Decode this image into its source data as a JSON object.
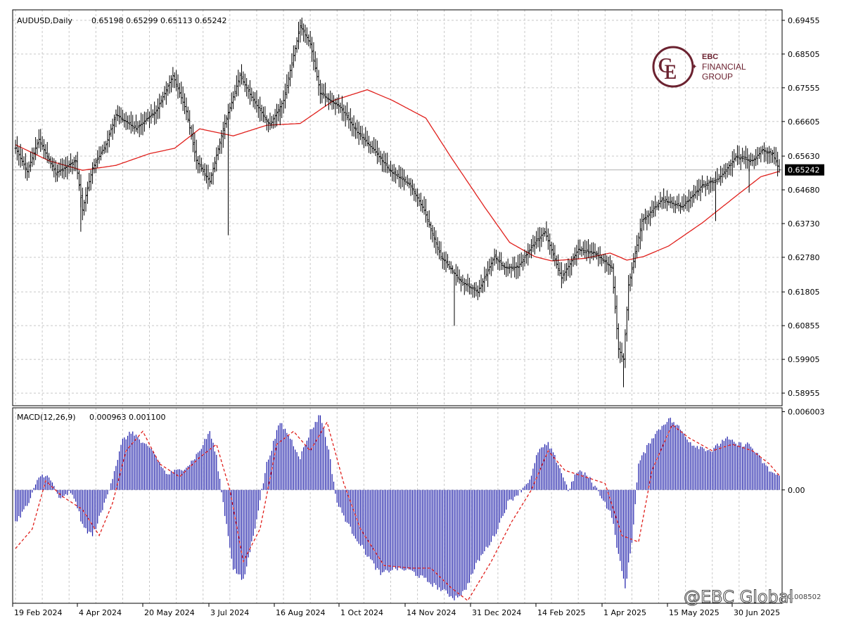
{
  "header": {
    "instrument": "AUDUSD,Daily",
    "ohlc": "0.65198 0.65299 0.65113 0.65242"
  },
  "macd_header": {
    "label": "MACD(12,26,9)",
    "values": "0.000963 0.001100"
  },
  "logo": {
    "line1": "EBC",
    "line2": "FINANCIAL",
    "line3": "GROUP",
    "color": "#6b2230"
  },
  "watermark": {
    "text": "@EBC Global",
    "corner_label": "-0.008502"
  },
  "current_price_label": "0.65242",
  "colors": {
    "price_bars": "#000000",
    "moving_average": "#e0201c",
    "macd_histogram": "#1a1aa8",
    "macd_signal": "#e0201c",
    "grid": "#c8c8c8",
    "current_price_box": "#000000"
  },
  "chart_data": [
    {
      "type": "ohlc",
      "instrument": "AUDUSD",
      "timeframe": "Daily",
      "ylim": [
        0.586,
        0.6975
      ],
      "y_ticks": [
        "0.69455",
        "0.68505",
        "0.67555",
        "0.66605",
        "0.65630",
        "0.64680",
        "0.63730",
        "0.62780",
        "0.61805",
        "0.60855",
        "0.59905",
        "0.58955"
      ],
      "x_ticks": [
        "19 Feb 2024",
        "4 Apr 2024",
        "20 May 2024",
        "3 Jul 2024",
        "16 Aug 2024",
        "1 Oct 2024",
        "14 Nov 2024",
        "31 Dec 2024",
        "14 Feb 2025",
        "1 Apr 2025",
        "15 May 2025",
        "30 Jun 2025"
      ],
      "grid": true,
      "last_close": 0.65242,
      "close_anchors": [
        [
          0,
          0.6585
        ],
        [
          7,
          0.652
        ],
        [
          14,
          0.661
        ],
        [
          24,
          0.6515
        ],
        [
          36,
          0.655
        ],
        [
          40,
          0.6412
        ],
        [
          46,
          0.653
        ],
        [
          54,
          0.6595
        ],
        [
          60,
          0.668
        ],
        [
          72,
          0.664
        ],
        [
          84,
          0.669
        ],
        [
          94,
          0.679
        ],
        [
          102,
          0.669
        ],
        [
          108,
          0.655
        ],
        [
          116,
          0.649
        ],
        [
          124,
          0.664
        ],
        [
          134,
          0.679
        ],
        [
          142,
          0.672
        ],
        [
          152,
          0.665
        ],
        [
          160,
          0.672
        ],
        [
          170,
          0.693
        ],
        [
          176,
          0.688
        ],
        [
          182,
          0.674
        ],
        [
          194,
          0.67
        ],
        [
          204,
          0.663
        ],
        [
          214,
          0.658
        ],
        [
          224,
          0.652
        ],
        [
          236,
          0.648
        ],
        [
          244,
          0.641
        ],
        [
          254,
          0.628
        ],
        [
          266,
          0.621
        ],
        [
          276,
          0.618
        ],
        [
          286,
          0.628
        ],
        [
          292,
          0.625
        ],
        [
          300,
          0.625
        ],
        [
          310,
          0.632
        ],
        [
          316,
          0.635
        ],
        [
          326,
          0.622
        ],
        [
          336,
          0.63
        ],
        [
          346,
          0.629
        ],
        [
          356,
          0.625
        ],
        [
          360,
          0.602
        ],
        [
          363,
          0.599
        ],
        [
          366,
          0.62
        ],
        [
          374,
          0.638
        ],
        [
          386,
          0.644
        ],
        [
          398,
          0.642
        ],
        [
          410,
          0.648
        ],
        [
          420,
          0.65
        ],
        [
          430,
          0.656
        ],
        [
          440,
          0.655
        ],
        [
          446,
          0.658
        ],
        [
          452,
          0.657
        ],
        [
          456,
          0.6524
        ]
      ],
      "moving_average_anchors": [
        [
          0,
          0.6595
        ],
        [
          20,
          0.655
        ],
        [
          40,
          0.6523
        ],
        [
          60,
          0.6537
        ],
        [
          80,
          0.657
        ],
        [
          95,
          0.6585
        ],
        [
          110,
          0.664
        ],
        [
          130,
          0.662
        ],
        [
          150,
          0.665
        ],
        [
          170,
          0.6655
        ],
        [
          190,
          0.672
        ],
        [
          210,
          0.675
        ],
        [
          225,
          0.672
        ],
        [
          245,
          0.667
        ],
        [
          260,
          0.656
        ],
        [
          280,
          0.642
        ],
        [
          295,
          0.632
        ],
        [
          310,
          0.628
        ],
        [
          320,
          0.6268
        ],
        [
          340,
          0.6275
        ],
        [
          355,
          0.629
        ],
        [
          365,
          0.627
        ],
        [
          375,
          0.628
        ],
        [
          390,
          0.631
        ],
        [
          410,
          0.6375
        ],
        [
          430,
          0.645
        ],
        [
          445,
          0.6505
        ],
        [
          456,
          0.652
        ]
      ]
    },
    {
      "type": "bar",
      "indicator": "MACD",
      "parameters": "12,26,9",
      "ylim": [
        -0.0087,
        0.0063
      ],
      "y_ticks": [
        "0.006003",
        "0.00"
      ],
      "last_macd": 0.000963,
      "last_signal": 0.0011,
      "grid": true,
      "histogram_anchors": [
        [
          0,
          -0.0025
        ],
        [
          8,
          -0.001
        ],
        [
          14,
          0.001
        ],
        [
          18,
          0.0012
        ],
        [
          22,
          0.0005
        ],
        [
          27,
          -0.0008
        ],
        [
          32,
          -0.0002
        ],
        [
          36,
          -0.0008
        ],
        [
          40,
          -0.0028
        ],
        [
          46,
          -0.0035
        ],
        [
          52,
          -0.0015
        ],
        [
          58,
          0.001
        ],
        [
          64,
          0.0038
        ],
        [
          70,
          0.0045
        ],
        [
          76,
          0.0035
        ],
        [
          82,
          0.003
        ],
        [
          90,
          0.0012
        ],
        [
          98,
          0.0015
        ],
        [
          104,
          0.002
        ],
        [
          110,
          0.003
        ],
        [
          116,
          0.0045
        ],
        [
          120,
          0.0025
        ],
        [
          124,
          -0.001
        ],
        [
          130,
          -0.006
        ],
        [
          136,
          -0.007
        ],
        [
          142,
          -0.0035
        ],
        [
          150,
          0.002
        ],
        [
          158,
          0.0052
        ],
        [
          164,
          0.004
        ],
        [
          170,
          0.0025
        ],
        [
          176,
          0.0045
        ],
        [
          182,
          0.0058
        ],
        [
          187,
          0.003
        ],
        [
          192,
          -0.001
        ],
        [
          200,
          -0.003
        ],
        [
          210,
          -0.005
        ],
        [
          218,
          -0.0065
        ],
        [
          226,
          -0.006
        ],
        [
          236,
          -0.0062
        ],
        [
          246,
          -0.007
        ],
        [
          256,
          -0.0078
        ],
        [
          262,
          -0.0083
        ],
        [
          268,
          -0.0078
        ],
        [
          276,
          -0.0055
        ],
        [
          286,
          -0.0035
        ],
        [
          294,
          -0.001
        ],
        [
          302,
          0.0
        ],
        [
          308,
          0.001
        ],
        [
          312,
          0.003
        ],
        [
          318,
          0.0035
        ],
        [
          324,
          0.002
        ],
        [
          330,
          0.0
        ],
        [
          336,
          0.0015
        ],
        [
          342,
          0.001
        ],
        [
          350,
          -0.0005
        ],
        [
          356,
          -0.002
        ],
        [
          360,
          -0.005
        ],
        [
          364,
          -0.0075
        ],
        [
          368,
          -0.004
        ],
        [
          372,
          0.002
        ],
        [
          380,
          0.004
        ],
        [
          390,
          0.0055
        ],
        [
          396,
          0.0048
        ],
        [
          404,
          0.0035
        ],
        [
          416,
          0.003
        ],
        [
          424,
          0.004
        ],
        [
          430,
          0.0035
        ],
        [
          438,
          0.0035
        ],
        [
          444,
          0.0025
        ],
        [
          450,
          0.0015
        ],
        [
          456,
          0.001
        ]
      ],
      "signal_anchors": [
        [
          0,
          -0.0045
        ],
        [
          10,
          -0.003
        ],
        [
          18,
          0.0007
        ],
        [
          28,
          -0.0005
        ],
        [
          40,
          -0.0015
        ],
        [
          50,
          -0.0035
        ],
        [
          58,
          -0.001
        ],
        [
          66,
          0.003
        ],
        [
          76,
          0.0045
        ],
        [
          86,
          0.002
        ],
        [
          98,
          0.001
        ],
        [
          110,
          0.0025
        ],
        [
          120,
          0.0035
        ],
        [
          128,
          0.0
        ],
        [
          136,
          -0.0055
        ],
        [
          146,
          -0.003
        ],
        [
          156,
          0.0035
        ],
        [
          166,
          0.0045
        ],
        [
          176,
          0.003
        ],
        [
          186,
          0.0052
        ],
        [
          196,
          0.0005
        ],
        [
          206,
          -0.003
        ],
        [
          220,
          -0.0058
        ],
        [
          236,
          -0.006
        ],
        [
          248,
          -0.006
        ],
        [
          260,
          -0.0075
        ],
        [
          270,
          -0.0085
        ],
        [
          284,
          -0.0055
        ],
        [
          296,
          -0.0025
        ],
        [
          308,
          0.0
        ],
        [
          318,
          0.003
        ],
        [
          328,
          0.0015
        ],
        [
          340,
          0.001
        ],
        [
          352,
          0.0005
        ],
        [
          362,
          -0.0035
        ],
        [
          372,
          -0.004
        ],
        [
          380,
          0.0015
        ],
        [
          392,
          0.005
        ],
        [
          402,
          0.004
        ],
        [
          416,
          0.003
        ],
        [
          428,
          0.0035
        ],
        [
          440,
          0.003
        ],
        [
          450,
          0.002
        ],
        [
          456,
          0.0011
        ]
      ]
    }
  ]
}
